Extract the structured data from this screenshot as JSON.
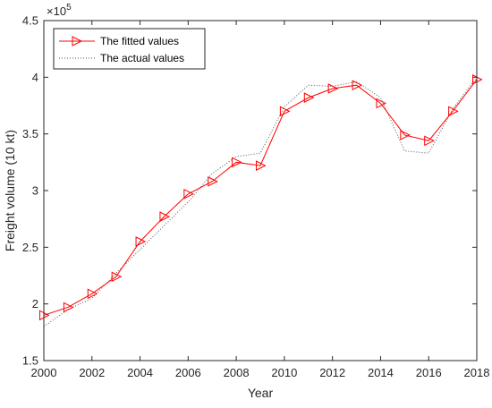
{
  "chart_data": {
    "type": "line",
    "xlabel": "Year",
    "ylabel": "Freight volume (10 kt)",
    "exponent_label": "×10",
    "exponent_power": "5",
    "xlim": [
      2000,
      2018
    ],
    "ylim": [
      1.5,
      4.5
    ],
    "x_ticks": [
      2000,
      2002,
      2004,
      2006,
      2008,
      2010,
      2012,
      2014,
      2016,
      2018
    ],
    "x_tick_labels": [
      "2000",
      "2002",
      "2004",
      "2006",
      "2008",
      "2010",
      "2012",
      "2014",
      "2016",
      "2018"
    ],
    "y_ticks": [
      1.5,
      2,
      2.5,
      3,
      3.5,
      4,
      4.5
    ],
    "y_tick_labels": [
      "1.5",
      "2",
      "2.5",
      "3",
      "3.5",
      "4",
      "4.5"
    ],
    "legend_position": "top-left",
    "grid": false,
    "x": [
      2000,
      2001,
      2002,
      2003,
      2004,
      2005,
      2006,
      2007,
      2008,
      2009,
      2010,
      2011,
      2012,
      2013,
      2014,
      2015,
      2016,
      2017,
      2018
    ],
    "series": [
      {
        "name": "The fitted values",
        "color": "#ff0000",
        "line_style": "solid",
        "marker": "triangle-right",
        "values": [
          1.9,
          1.97,
          2.09,
          2.24,
          2.55,
          2.77,
          2.97,
          3.08,
          3.25,
          3.22,
          3.7,
          3.82,
          3.9,
          3.93,
          3.77,
          3.49,
          3.44,
          3.7,
          3.98
        ]
      },
      {
        "name": "The actual values",
        "color": "#555555",
        "line_style": "dotted",
        "marker": "none",
        "values": [
          1.8,
          1.95,
          2.05,
          2.27,
          2.48,
          2.69,
          2.9,
          3.15,
          3.3,
          3.33,
          3.74,
          3.93,
          3.92,
          3.96,
          3.82,
          3.35,
          3.33,
          3.72,
          4.0
        ]
      }
    ]
  }
}
